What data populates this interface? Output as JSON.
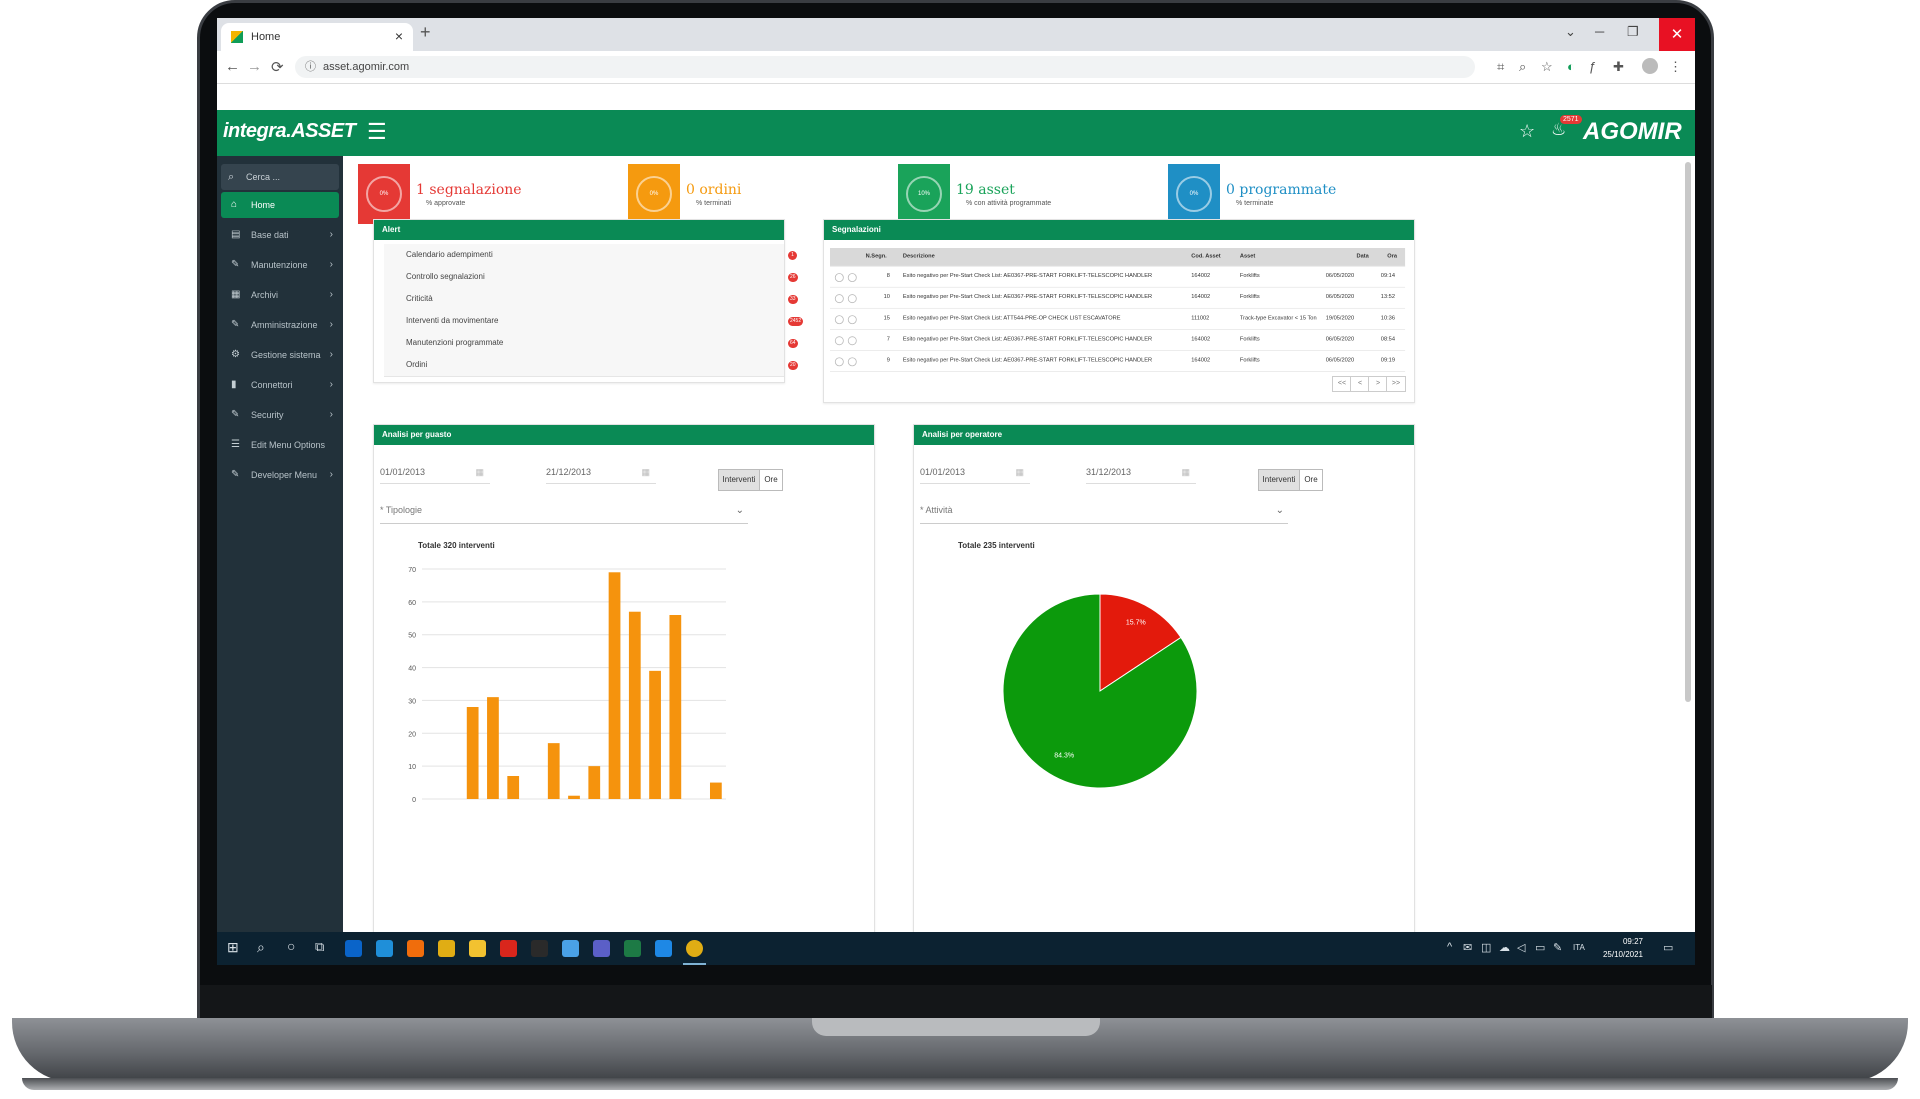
{
  "browser": {
    "tab_title": "Home",
    "tab_close": "×",
    "new_tab": "+",
    "url": "asset.agomir.com",
    "back": "←",
    "forward": "→",
    "reload": "⟳",
    "minimize": "─",
    "restore": "❐",
    "close": "✕",
    "tabsearch": "⌄"
  },
  "header": {
    "logo": "integra.ASSET",
    "menu_icon": "☰",
    "star_icon": "☆",
    "bell_icon": "🔔",
    "badge": "2571",
    "brand": "AGOMIR"
  },
  "sidebar": {
    "search_placeholder": "Cerca ...",
    "items": [
      {
        "label": "Home",
        "icon": "⌂",
        "active": true
      },
      {
        "label": "Base dati",
        "icon": "▤",
        "chevron": "›"
      },
      {
        "label": "Manutenzione",
        "icon": "✎",
        "chevron": "›"
      },
      {
        "label": "Archivi",
        "icon": "▦",
        "chevron": "›"
      },
      {
        "label": "Amministrazione",
        "icon": "✎",
        "chevron": "›"
      },
      {
        "label": "Gestione sistema",
        "icon": "⚙",
        "chevron": "›"
      },
      {
        "label": "Connettori",
        "icon": "▮",
        "chevron": "›"
      },
      {
        "label": "Security",
        "icon": "✎",
        "chevron": "›"
      },
      {
        "label": "Edit Menu Options",
        "icon": "☰"
      },
      {
        "label": "Developer Menu",
        "icon": "✎",
        "chevron": "›"
      }
    ]
  },
  "kpis": [
    {
      "title": "1 segnalazione",
      "sub": "% approvate",
      "pct": "0%",
      "color": "#e53935"
    },
    {
      "title": "0 ordini",
      "sub": "% terminati",
      "pct": "0%",
      "color": "#f59a0f"
    },
    {
      "title": "19 asset",
      "sub": "% con attività programmate",
      "pct": "10%",
      "color": "#1aa35a"
    },
    {
      "title": "0 programmate",
      "sub": "% terminate",
      "pct": "0%",
      "color": "#1f8fc5"
    }
  ],
  "alerts": {
    "title": "Alert",
    "rows": [
      {
        "label": "Calendario adempimenti",
        "badge": "1"
      },
      {
        "label": "Controllo segnalazioni",
        "badge": "26"
      },
      {
        "label": "Criticità",
        "badge": "33"
      },
      {
        "label": "Interventi da movimentare",
        "badge": "2452"
      },
      {
        "label": "Manutenzioni programmate",
        "badge": "64"
      },
      {
        "label": "Ordini",
        "badge": "20"
      }
    ]
  },
  "segnalazioni": {
    "title": "Segnalazioni",
    "columns": [
      "N.Segn.",
      "Descrizione",
      "Cod. Asset",
      "Asset",
      "Data",
      "Ora"
    ],
    "rows": [
      {
        "n": "8",
        "desc": "Esito negativo per Pre-Start Check List: AE0367-PRE-START FORKLIFT-TELESCOPIC HANDLER",
        "cod": "164002",
        "asset": "Forklifts",
        "data": "06/05/2020",
        "ora": "09:14"
      },
      {
        "n": "10",
        "desc": "Esito negativo per Pre-Start Check List: AE0367-PRE-START FORKLIFT-TELESCOPIC HANDLER",
        "cod": "164002",
        "asset": "Forklifts",
        "data": "06/05/2020",
        "ora": "13:52"
      },
      {
        "n": "15",
        "desc": "Esito negativo per Pre-Start Check List: ATT544-PRE-OP CHECK LIST ESCAVATORE",
        "cod": "111002",
        "asset": "Track-type Excavator < 15 Ton",
        "data": "19/05/2020",
        "ora": "10:36"
      },
      {
        "n": "7",
        "desc": "Esito negativo per Pre-Start Check List: AE0367-PRE-START FORKLIFT-TELESCOPIC HANDLER",
        "cod": "164002",
        "asset": "Forklifts",
        "data": "06/05/2020",
        "ora": "08:54"
      },
      {
        "n": "9",
        "desc": "Esito negativo per Pre-Start Check List: AE0367-PRE-START FORKLIFT-TELESCOPIC HANDLER",
        "cod": "164002",
        "asset": "Forklifts",
        "data": "06/05/2020",
        "ora": "09:19"
      }
    ],
    "pager": [
      "<<",
      "<",
      ">",
      ">>"
    ]
  },
  "analisi_guasto": {
    "title": "Analisi per guasto",
    "date_from": "01/01/2013",
    "date_to": "21/12/2013",
    "toggle_a": "Interventi",
    "toggle_b": "Ore",
    "select_placeholder": "* Tipologie",
    "chart_title": "Totale 320 interventi"
  },
  "analisi_operatore": {
    "title": "Analisi per operatore",
    "date_from": "01/01/2013",
    "date_to": "31/12/2013",
    "toggle_a": "Interventi",
    "toggle_b": "Ore",
    "select_placeholder": "* Attività",
    "chart_title": "Totale 235 interventi"
  },
  "chart_data": [
    {
      "type": "bar",
      "title": "Totale 320 interventi",
      "yticks": [
        "0",
        "10",
        "20",
        "30",
        "40",
        "50",
        "60",
        "70"
      ],
      "ylim": [
        0,
        70
      ],
      "values": [
        0,
        0,
        28,
        31,
        7,
        0,
        17,
        1,
        10,
        69,
        57,
        39,
        56,
        0,
        5
      ],
      "color": "#f5930d",
      "grid": true
    },
    {
      "type": "pie",
      "title": "Totale 235 interventi",
      "slices": [
        {
          "label": "15.7%",
          "value": 15.7,
          "color": "#e31a0c"
        },
        {
          "label": "84.3%",
          "value": 84.3,
          "color": "#0c9a0c"
        }
      ]
    }
  ],
  "taskbar": {
    "time": "09:27",
    "date": "25/10/2021",
    "lang": "ITA",
    "search_icon": "⌕",
    "start_icon": "⊞",
    "cortana_icon": "○",
    "taskview_icon": "⧉",
    "notif_icon": "▭"
  }
}
